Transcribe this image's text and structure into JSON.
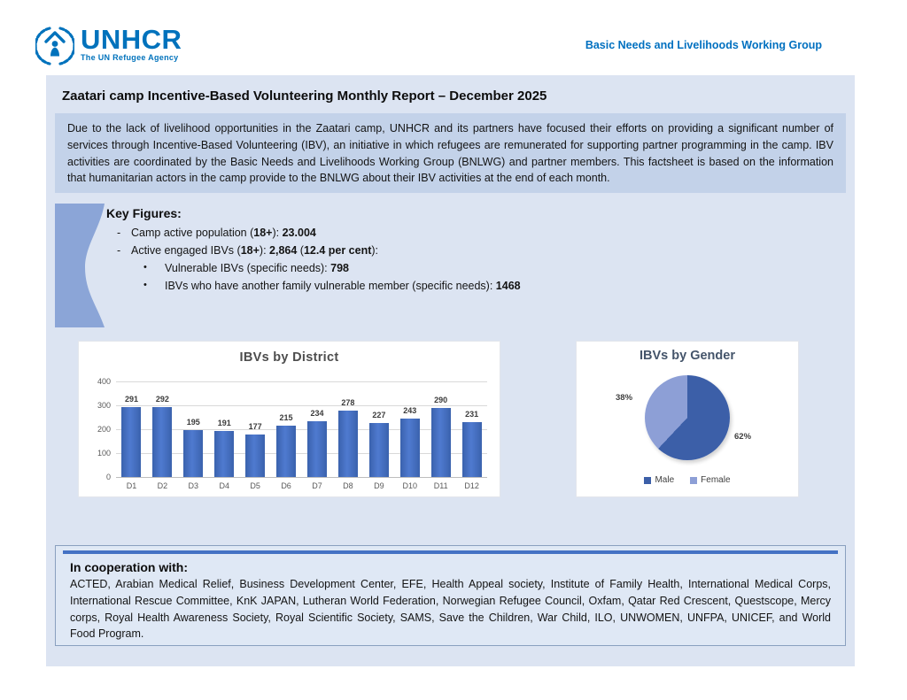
{
  "header": {
    "logo_name": "UNHCR",
    "logo_tagline": "The UN Refugee Agency",
    "group_title": "Basic Needs and Livelihoods Working Group"
  },
  "report": {
    "title": "Zaatari camp Incentive-Based Volunteering Monthly Report – December 2025",
    "intro": "Due to the lack of livelihood opportunities in the Zaatari camp, UNHCR and its partners have focused their efforts on providing a significant number of services through Incentive-Based Volunteering (IBV), an initiative in which refugees are remunerated for supporting partner programming in the camp. IBV activities are coordinated by the Basic Needs and Livelihoods Working Group (BNLWG) and partner members. This factsheet is based on the information that humanitarian actors in the camp provide to the BNLWG about their IBV activities at the end of each month."
  },
  "key_figures": {
    "heading": "Key Figures:",
    "items": [
      {
        "marker": "-",
        "indent": false,
        "runs": [
          {
            "t": "Camp active population ("
          },
          {
            "t": "18+",
            "b": true
          },
          {
            "t": "): "
          },
          {
            "t": "23.004",
            "b": true
          }
        ]
      },
      {
        "marker": "-",
        "indent": false,
        "runs": [
          {
            "t": "Active engaged IBVs ("
          },
          {
            "t": "18+",
            "b": true
          },
          {
            "t": "): "
          },
          {
            "t": "2,864",
            "b": true
          },
          {
            "t": " ("
          },
          {
            "t": "12.4 per cent",
            "b": true
          },
          {
            "t": "):"
          }
        ]
      },
      {
        "marker": "•",
        "indent": true,
        "runs": [
          {
            "t": "Vulnerable IBVs (specific needs): "
          },
          {
            "t": "798",
            "b": true
          }
        ]
      },
      {
        "marker": "•",
        "indent": true,
        "runs": [
          {
            "t": "IBVs who have another family vulnerable member (specific needs): "
          },
          {
            "t": "1468",
            "b": true
          }
        ]
      }
    ]
  },
  "chart_data": [
    {
      "type": "bar",
      "title": "IBVs by District",
      "categories": [
        "D1",
        "D2",
        "D3",
        "D4",
        "D5",
        "D6",
        "D7",
        "D8",
        "D9",
        "D10",
        "D11",
        "D12"
      ],
      "values": [
        291,
        292,
        195,
        191,
        177,
        215,
        234,
        278,
        227,
        243,
        290,
        231
      ],
      "xlabel": "",
      "ylabel": "",
      "ylim": [
        0,
        400
      ],
      "yticks": [
        0,
        100,
        200,
        300,
        400
      ],
      "grid": true,
      "bar_color": "#4472c4",
      "data_labels": true,
      "legend_position": "none"
    },
    {
      "type": "pie",
      "title": "IBVs by Gender",
      "labels": [
        "Male",
        "Female"
      ],
      "values": [
        62,
        38
      ],
      "unit": "%",
      "colors": [
        "#3c5fa8",
        "#8d9fd6"
      ],
      "start_angle_deg": 0,
      "direction": "clockwise",
      "legend_position": "bottom"
    }
  ],
  "cooperation": {
    "heading": "In cooperation with:",
    "body": "ACTED, Arabian Medical Relief, Business Development Center, EFE, Health Appeal society, Institute of Family Health, International Medical Corps, International Rescue Committee, KnK JAPAN, Lutheran World Federation, Norwegian Refugee Council, Oxfam, Qatar Red Crescent, Questscope, Mercy corps, Royal Health Awareness Society, Royal Scientific Society, SAMS, Save the Children, War Child, ILO, UNWOMEN, UNFPA, UNICEF, and World Food Program."
  },
  "colors": {
    "unhcr_blue": "#0072bc",
    "header_text_blue": "#0070c0",
    "panel_bg": "#dce4f2",
    "intro_bg": "#c3d2e9",
    "accent_bar": "#4472c4",
    "kf_shape": "#8ba5d7",
    "pie_male": "#3c5fa8",
    "pie_female": "#8d9fd6"
  }
}
